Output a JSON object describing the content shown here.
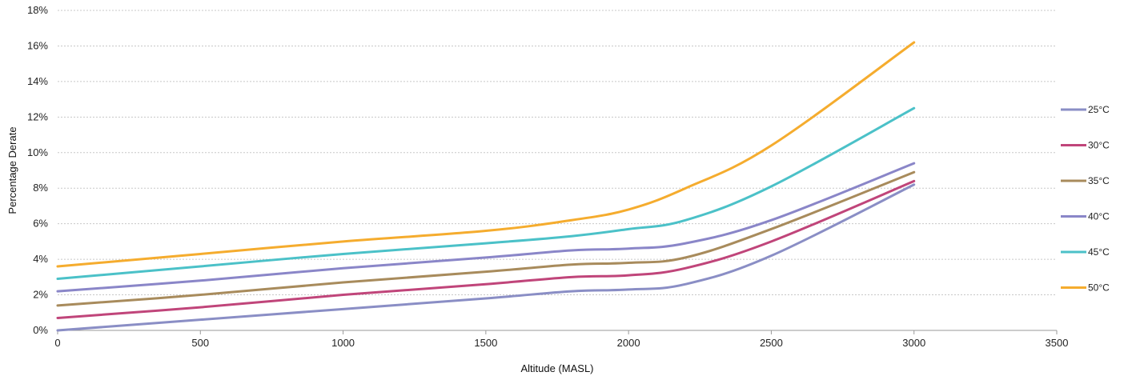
{
  "chart_data": {
    "type": "line",
    "xlabel": "Altitude (MASL)",
    "ylabel": "Percentage Derate",
    "xlim": [
      0,
      3500
    ],
    "ylim": [
      0,
      18
    ],
    "x_ticks": [
      0,
      500,
      1000,
      1500,
      2000,
      2500,
      3000,
      3500
    ],
    "x_tick_labels": [
      "0",
      "500",
      "1000",
      "1500",
      "2000",
      "2500",
      "3000",
      "3500"
    ],
    "y_ticks": [
      0,
      2,
      4,
      6,
      8,
      10,
      12,
      14,
      16,
      18
    ],
    "y_tick_labels": [
      "0%",
      "2%",
      "4%",
      "6%",
      "8%",
      "10%",
      "12%",
      "14%",
      "16%",
      "18%"
    ],
    "grid": true,
    "legend_position": "right",
    "x": [
      0,
      500,
      1000,
      1500,
      1800,
      2000,
      2200,
      2500,
      3000
    ],
    "series": [
      {
        "name": "25°C",
        "color": "#8a8ec5",
        "values": [
          0.0,
          0.6,
          1.2,
          1.8,
          2.2,
          2.3,
          2.6,
          4.2,
          8.2
        ]
      },
      {
        "name": "30°C",
        "color": "#c0457a",
        "values": [
          0.7,
          1.3,
          2.0,
          2.6,
          3.0,
          3.1,
          3.5,
          5.0,
          8.4
        ]
      },
      {
        "name": "35°C",
        "color": "#a88b5c",
        "values": [
          1.4,
          2.0,
          2.7,
          3.3,
          3.7,
          3.8,
          4.1,
          5.7,
          8.9
        ]
      },
      {
        "name": "40°C",
        "color": "#8a86c8",
        "values": [
          2.2,
          2.8,
          3.5,
          4.1,
          4.5,
          4.6,
          4.9,
          6.2,
          9.4
        ]
      },
      {
        "name": "45°C",
        "color": "#4bc1c8",
        "values": [
          2.9,
          3.6,
          4.3,
          4.9,
          5.3,
          5.7,
          6.2,
          8.1,
          12.5
        ]
      },
      {
        "name": "50°C",
        "color": "#f5ac2e",
        "values": [
          3.6,
          4.3,
          5.0,
          5.6,
          6.2,
          6.8,
          8.0,
          10.4,
          16.2
        ]
      }
    ]
  }
}
